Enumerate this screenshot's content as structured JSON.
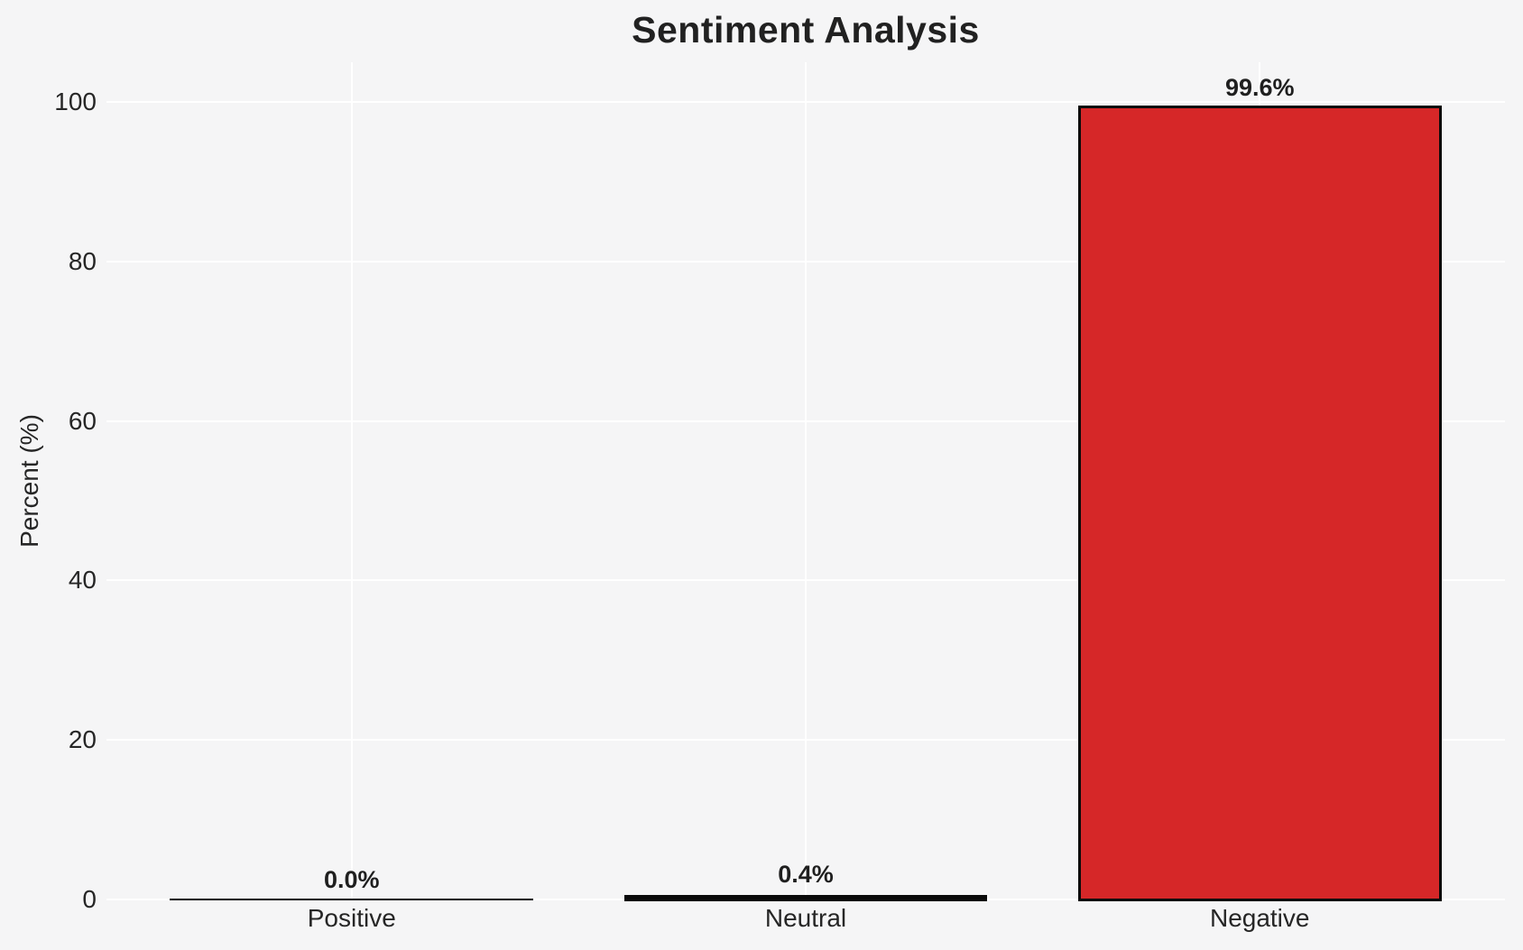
{
  "chart_data": {
    "type": "bar",
    "title": "Sentiment Analysis",
    "xlabel": "",
    "ylabel": "Percent (%)",
    "categories": [
      "Positive",
      "Neutral",
      "Negative"
    ],
    "values": [
      0.0,
      0.4,
      99.6
    ],
    "value_labels": [
      "0.0%",
      "0.4%",
      "99.6%"
    ],
    "yticks": [
      0,
      20,
      40,
      60,
      80,
      100
    ],
    "ylim": [
      0,
      105
    ],
    "grid": true,
    "legend_position": "none",
    "colors": {
      "background": "#f5f5f6",
      "gridline": "#ffffff",
      "text": "#262626",
      "title_text": "#212121",
      "bar_fills": [
        "#0a0a0a",
        "#0a0a0a",
        "#d62728"
      ],
      "bar_edge": "#0a0a0a"
    }
  }
}
